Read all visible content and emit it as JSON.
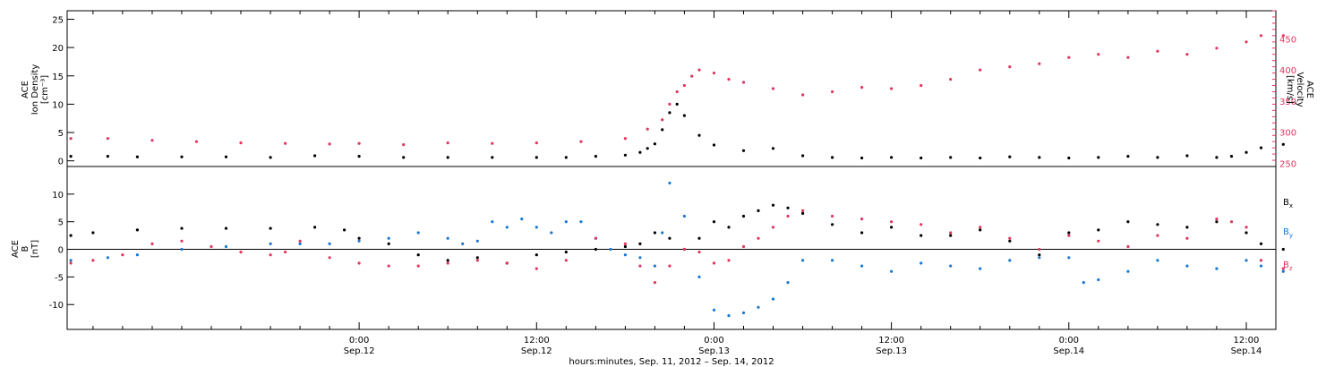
{
  "figure": {
    "xlabel": "hours:minutes, Sep. 11, 2012 – Sep. 14, 2012",
    "x_domain_hours": [
      -19.75,
      62.0
    ],
    "time_ticks": [
      {
        "hour": 0,
        "time": "0:00",
        "date": "Sep.12"
      },
      {
        "hour": 12,
        "time": "12:00",
        "date": "Sep.12"
      },
      {
        "hour": 24,
        "time": "0:00",
        "date": "Sep.13"
      },
      {
        "hour": 36,
        "time": "12:00",
        "date": "Sep.13"
      },
      {
        "hour": 48,
        "time": "0:00",
        "date": "Sep.14"
      },
      {
        "hour": 60,
        "time": "12:00",
        "date": "Sep.14"
      }
    ],
    "minor_tick_hours": 2
  },
  "colors": {
    "axis": "#000000",
    "bx": "#000000",
    "by": "#1a78d2",
    "bz": "#e0365f",
    "velocity": "#e0365f",
    "density": "#000000"
  },
  "chart_data": [
    {
      "type": "scatter",
      "panel": "plasma",
      "left_axis": {
        "label_lines": [
          "ACE",
          "Ion Density",
          "[cm⁻³]"
        ],
        "ylim": [
          -1,
          26.5
        ],
        "ticks": [
          0,
          5,
          10,
          15,
          20,
          25
        ]
      },
      "right_axis": {
        "label_lines": [
          "ACE",
          "Velocity",
          "[km/s]"
        ],
        "ylim": [
          245,
          495
        ],
        "ticks": [
          250,
          300,
          350,
          400,
          450
        ]
      },
      "series": [
        {
          "key": "density",
          "axis": "left",
          "x": [
            -19.5,
            -17,
            -15,
            -12,
            -9,
            -6,
            -3,
            0,
            3,
            6,
            9,
            12,
            14,
            16,
            18,
            19,
            19.5,
            20,
            20.5,
            21,
            21.5,
            22,
            23,
            24,
            26,
            28,
            30,
            32,
            34,
            36,
            38,
            40,
            42,
            44,
            46,
            48,
            50,
            52,
            54,
            56,
            58,
            59,
            60,
            61,
            62.5
          ],
          "y": [
            0.8,
            0.8,
            0.7,
            0.7,
            0.7,
            0.6,
            0.9,
            0.8,
            0.6,
            0.6,
            0.6,
            0.6,
            0.6,
            0.8,
            1.0,
            1.5,
            2.2,
            3.0,
            5.5,
            8.5,
            10.0,
            8.0,
            4.5,
            2.8,
            1.8,
            2.2,
            0.9,
            0.6,
            0.5,
            0.6,
            0.5,
            0.6,
            0.5,
            0.7,
            0.6,
            0.5,
            0.6,
            0.8,
            0.6,
            0.9,
            0.6,
            0.8,
            1.5,
            2.3,
            2.9
          ]
        },
        {
          "key": "velocity",
          "axis": "right",
          "x": [
            -19.5,
            -17,
            -14,
            -11,
            -8,
            -5,
            -2,
            0,
            3,
            6,
            9,
            12,
            15,
            18,
            19.5,
            20.5,
            21,
            21.5,
            22,
            22.5,
            23,
            24,
            25,
            26,
            28,
            30,
            32,
            34,
            36,
            38,
            40,
            42,
            44,
            46,
            48,
            50,
            52,
            54,
            56,
            58,
            60,
            61,
            62.5
          ],
          "y": [
            290,
            290,
            287,
            285,
            283,
            282,
            281,
            282,
            280,
            283,
            282,
            283,
            285,
            290,
            305,
            320,
            345,
            365,
            375,
            390,
            400,
            395,
            385,
            380,
            370,
            360,
            365,
            372,
            370,
            375,
            385,
            400,
            405,
            410,
            420,
            425,
            420,
            430,
            425,
            435,
            445,
            455,
            455
          ]
        }
      ]
    },
    {
      "type": "scatter",
      "panel": "magnetic-field",
      "left_axis": {
        "label_lines": [
          "ACE",
          "B",
          "[nT]"
        ],
        "ylim": [
          -14.5,
          15
        ],
        "ticks": [
          -10,
          -5,
          0,
          5,
          10
        ]
      },
      "legend": {
        "placement": "right",
        "entries": [
          {
            "key": "bx",
            "base": "B",
            "sub": "x"
          },
          {
            "key": "by",
            "base": "B",
            "sub": "y"
          },
          {
            "key": "bz",
            "base": "B",
            "sub": "z"
          }
        ]
      },
      "series": [
        {
          "key": "bx",
          "x": [
            -19.5,
            -18,
            -15,
            -12,
            -9,
            -6,
            -3,
            -1,
            0,
            2,
            4,
            6,
            8,
            10,
            12,
            14,
            16,
            18,
            19,
            20,
            21,
            22,
            23,
            24,
            25,
            26,
            27,
            28,
            29,
            30,
            32,
            34,
            36,
            38,
            40,
            42,
            44,
            46,
            48,
            50,
            52,
            54,
            56,
            58,
            60,
            61,
            62.5
          ],
          "y": [
            2.5,
            3.0,
            3.5,
            3.8,
            3.8,
            3.8,
            4.0,
            3.5,
            2.0,
            1.0,
            -1.0,
            -2.0,
            -1.5,
            -2.5,
            -1.0,
            -0.5,
            0.0,
            0.5,
            1.0,
            3.0,
            2.0,
            0.0,
            2.0,
            5.0,
            4.0,
            6.0,
            7.0,
            8.0,
            7.5,
            6.5,
            4.5,
            3.0,
            4.0,
            2.5,
            2.5,
            3.5,
            1.5,
            -1.0,
            3.0,
            3.5,
            5.0,
            4.5,
            4.0,
            5.0,
            3.0,
            1.0,
            0.0
          ]
        },
        {
          "key": "by",
          "x": [
            -19.5,
            -17,
            -15,
            -12,
            -9,
            -6,
            -4,
            -2,
            0,
            2,
            4,
            6,
            7,
            8,
            9,
            10,
            11,
            12,
            13,
            14,
            15,
            16,
            17,
            18,
            19,
            20,
            20.5,
            21,
            22,
            23,
            24,
            25,
            26,
            27,
            28,
            29,
            30,
            32,
            34,
            36,
            38,
            40,
            42,
            44,
            46,
            48,
            49,
            50,
            52,
            54,
            56,
            58,
            60,
            61,
            62.5
          ],
          "y": [
            -2.0,
            -1.5,
            -1.0,
            0.0,
            0.5,
            1.0,
            1.0,
            1.0,
            1.5,
            2.0,
            3.0,
            2.0,
            1.0,
            1.5,
            5.0,
            4.0,
            5.5,
            4.0,
            3.0,
            5.0,
            5.0,
            2.0,
            0.0,
            -1.0,
            -1.5,
            -3.0,
            3.0,
            12.0,
            6.0,
            -5.0,
            -11.0,
            -12.0,
            -11.5,
            -10.5,
            -9.0,
            -6.0,
            -2.0,
            -2.0,
            -3.0,
            -4.0,
            -2.5,
            -3.0,
            -3.5,
            -2.0,
            -1.5,
            -1.5,
            -6.0,
            -5.5,
            -4.0,
            -2.0,
            -3.0,
            -3.5,
            -2.0,
            -3.0,
            -4.0
          ]
        },
        {
          "key": "bz",
          "x": [
            -19.5,
            -18,
            -16,
            -14,
            -12,
            -10,
            -8,
            -6,
            -5,
            -4,
            -2,
            0,
            2,
            4,
            6,
            8,
            10,
            12,
            14,
            16,
            18,
            19,
            20,
            21,
            22,
            23,
            24,
            25,
            26,
            27,
            28,
            29,
            30,
            32,
            34,
            36,
            38,
            40,
            42,
            44,
            46,
            48,
            50,
            52,
            54,
            56,
            58,
            59,
            60,
            61,
            62.5
          ],
          "y": [
            -2.5,
            -2.0,
            -1.0,
            1.0,
            1.5,
            0.5,
            -0.5,
            -1.0,
            -0.5,
            1.5,
            -1.5,
            -2.5,
            -3.0,
            -3.0,
            -2.5,
            -2.0,
            -2.5,
            -3.5,
            -2.0,
            2.0,
            1.0,
            -3.0,
            -6.0,
            -3.0,
            0.0,
            -0.5,
            -2.5,
            -2.0,
            0.5,
            2.0,
            4.0,
            6.0,
            7.0,
            6.0,
            5.5,
            5.0,
            4.5,
            3.0,
            4.0,
            2.0,
            0.0,
            2.5,
            1.5,
            0.5,
            2.5,
            2.0,
            5.5,
            5.0,
            4.0,
            -2.0,
            -3.5
          ]
        }
      ]
    }
  ]
}
